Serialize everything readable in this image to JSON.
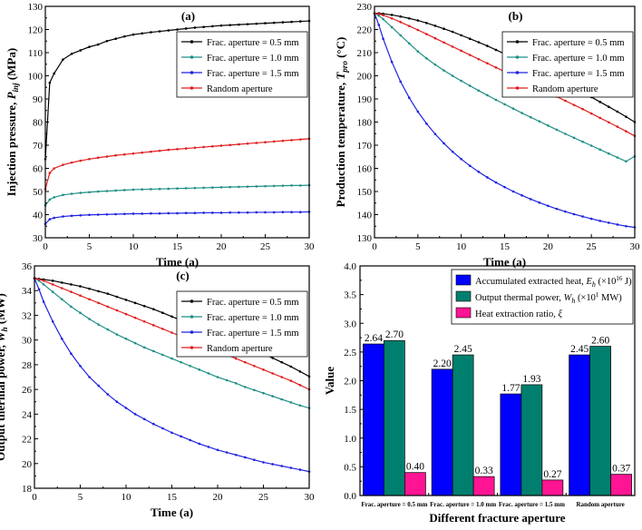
{
  "colors": {
    "s05": "#000000",
    "s10": "#1f8f86",
    "s15": "#1e22e0",
    "rand": "#e01e1e",
    "barHeat": "#0000ff",
    "barPower": "#007f6e",
    "barRatio": "#ff1493"
  },
  "chart_data": [
    {
      "id": "a",
      "type": "line",
      "panel_label": "(a)",
      "xlabel": "Time (a)",
      "ylabel": "Injection pressure, P_inj (MPa)",
      "ylabel_parts": {
        "pre": "Injection pressure, ",
        "sym": "P",
        "sub": "inj",
        "post": " (MPa)"
      },
      "xlim": [
        0,
        30
      ],
      "ylim": [
        30,
        130
      ],
      "xticks": [
        0,
        5,
        10,
        15,
        20,
        25,
        30
      ],
      "yticks": [
        30,
        40,
        50,
        60,
        70,
        80,
        90,
        100,
        110,
        120,
        130
      ],
      "legend": "top-right",
      "x": [
        0,
        0.5,
        1,
        2,
        3,
        4,
        5,
        6,
        7,
        8,
        9,
        10,
        11,
        12,
        13,
        14,
        15,
        16,
        17,
        18,
        19,
        20,
        21,
        22,
        23,
        24,
        25,
        26,
        27,
        28,
        29,
        30
      ],
      "series": [
        {
          "name": "Frac. aperture = 0.5 mm",
          "color_key": "s05",
          "values": [
            64,
            97,
            101,
            107,
            109.5,
            111,
            112.5,
            113.5,
            115,
            116,
            117,
            117.8,
            118.3,
            118.8,
            119.2,
            119.6,
            120,
            120.4,
            120.8,
            121.1,
            121.4,
            121.7,
            121.9,
            122.1,
            122.3,
            122.5,
            122.7,
            122.9,
            123.1,
            123.3,
            123.5,
            123.7
          ]
        },
        {
          "name": "Frac. aperture = 1.0 mm",
          "color_key": "s10",
          "values": [
            44,
            46.5,
            47.5,
            48.5,
            49,
            49.4,
            49.7,
            50,
            50.2,
            50.4,
            50.6,
            50.8,
            50.9,
            51,
            51.1,
            51.2,
            51.3,
            51.4,
            51.5,
            51.6,
            51.7,
            51.8,
            51.9,
            52,
            52.1,
            52.2,
            52.3,
            52.4,
            52.5,
            52.6,
            52.6,
            52.7
          ]
        },
        {
          "name": "Frac. aperture = 1.5 mm",
          "color_key": "s15",
          "values": [
            36,
            38,
            38.6,
            39.2,
            39.5,
            39.7,
            39.9,
            40,
            40.1,
            40.2,
            40.3,
            40.4,
            40.4,
            40.5,
            40.5,
            40.6,
            40.6,
            40.7,
            40.7,
            40.8,
            40.8,
            40.8,
            40.9,
            40.9,
            40.9,
            41,
            41,
            41,
            41.1,
            41.1,
            41.1,
            41.2
          ]
        },
        {
          "name": "Random aperture",
          "color_key": "rand",
          "values": [
            51,
            58,
            60,
            61.5,
            62.5,
            63.3,
            64,
            64.6,
            65.1,
            65.6,
            66,
            66.4,
            66.8,
            67.2,
            67.6,
            68,
            68.3,
            68.6,
            68.9,
            69.2,
            69.5,
            69.8,
            70.1,
            70.4,
            70.7,
            71,
            71.3,
            71.6,
            71.9,
            72.2,
            72.5,
            72.8
          ]
        }
      ]
    },
    {
      "id": "b",
      "type": "line",
      "panel_label": "(b)",
      "xlabel": "Time (a)",
      "ylabel": "Production temperature, T_pro (°C)",
      "ylabel_parts": {
        "pre": "Production temperature, ",
        "sym": "T",
        "sub": "pro",
        "post": " (°C)"
      },
      "xlim": [
        0,
        30
      ],
      "ylim": [
        130,
        230
      ],
      "xticks": [
        0,
        5,
        10,
        15,
        20,
        25,
        30
      ],
      "yticks": [
        130,
        140,
        150,
        160,
        170,
        180,
        190,
        200,
        210,
        220,
        230
      ],
      "legend": "top-right",
      "x": [
        0,
        0.5,
        1,
        2,
        3,
        4,
        5,
        6,
        7,
        8,
        9,
        10,
        11,
        12,
        13,
        14,
        15,
        16,
        17,
        18,
        19,
        20,
        21,
        22,
        23,
        24,
        25,
        26,
        27,
        28,
        29,
        30
      ],
      "series": [
        {
          "name": "Frac. aperture = 0.5 mm",
          "color_key": "s05",
          "values": [
            227,
            227,
            226.8,
            226.3,
            225.6,
            224.8,
            223.9,
            222.8,
            221.6,
            220.3,
            219,
            217.5,
            216,
            214.5,
            212.9,
            211.2,
            209.5,
            207.8,
            206,
            204.2,
            202.4,
            200.5,
            198.6,
            196.7,
            194.8,
            192.8,
            190.8,
            188.7,
            186.6,
            184.5,
            182.3,
            180
          ]
        },
        {
          "name": "Frac. aperture = 1.0 mm",
          "color_key": "s10",
          "values": [
            227,
            226,
            224.5,
            221,
            217.5,
            214,
            210.5,
            207.5,
            204.8,
            202.3,
            200,
            197.8,
            195.7,
            193.6,
            191.6,
            189.6,
            187.7,
            185.8,
            183.9,
            182.1,
            180.3,
            178.5,
            176.7,
            174.9,
            173.2,
            171.5,
            169.8,
            168.1,
            166.4,
            164.7,
            163,
            165.2
          ]
        },
        {
          "name": "Frac. aperture = 1.5 mm",
          "color_key": "s15",
          "values": [
            227,
            222,
            216,
            206,
            197.5,
            190.5,
            184.5,
            179.3,
            174.8,
            170.8,
            167.2,
            164,
            161.1,
            158.5,
            156.1,
            153.9,
            151.9,
            150,
            148.3,
            146.7,
            145.2,
            143.8,
            142.5,
            141.3,
            140.2,
            139.2,
            138.2,
            137.3,
            136.5,
            135.7,
            135,
            134.5
          ]
        },
        {
          "name": "Random aperture",
          "color_key": "rand",
          "values": [
            227,
            226.7,
            226.2,
            224.8,
            223.2,
            221.5,
            219.8,
            218,
            216.2,
            214.4,
            212.6,
            210.8,
            209,
            207.2,
            205.4,
            203.6,
            201.8,
            200,
            198.2,
            196.4,
            194.6,
            192.8,
            191,
            189.2,
            187.4,
            185.6,
            183.7,
            181.8,
            179.9,
            178,
            176,
            174
          ]
        }
      ]
    },
    {
      "id": "c",
      "type": "line",
      "panel_label": "(c)",
      "xlabel": "Time (a)",
      "ylabel": "Output thermal power, W_h (MW)",
      "ylabel_parts": {
        "pre": "Output thermal power, ",
        "sym": "W",
        "sub": "h",
        "post": " (MW)"
      },
      "xlim": [
        0,
        30
      ],
      "ylim": [
        18,
        36
      ],
      "xticks": [
        0,
        5,
        10,
        15,
        20,
        25,
        30
      ],
      "yticks": [
        18,
        20,
        22,
        24,
        26,
        28,
        30,
        32,
        34,
        36
      ],
      "legend": "top-right",
      "x": [
        0,
        0.5,
        1,
        2,
        3,
        4,
        5,
        6,
        7,
        8,
        9,
        10,
        11,
        12,
        13,
        14,
        15,
        16,
        17,
        18,
        19,
        20,
        21,
        22,
        23,
        24,
        25,
        26,
        27,
        28,
        29,
        30
      ],
      "series": [
        {
          "name": "Frac. aperture = 0.5 mm",
          "color_key": "s05",
          "values": [
            35,
            34.95,
            34.9,
            34.8,
            34.65,
            34.5,
            34.35,
            34.15,
            33.95,
            33.75,
            33.5,
            33.25,
            33,
            32.75,
            32.5,
            32.2,
            31.9,
            31.6,
            31.3,
            31,
            30.7,
            30.4,
            30.1,
            29.8,
            29.5,
            29.2,
            28.9,
            28.55,
            28.2,
            27.85,
            27.45,
            27.05
          ]
        },
        {
          "name": "Frac. aperture = 1.0 mm",
          "color_key": "s10",
          "values": [
            35,
            34.8,
            34.5,
            33.9,
            33.3,
            32.7,
            32.2,
            31.7,
            31.25,
            30.85,
            30.45,
            30.1,
            29.75,
            29.4,
            29.1,
            28.8,
            28.5,
            28.2,
            27.9,
            27.6,
            27.3,
            27,
            26.75,
            26.5,
            26.2,
            25.95,
            25.7,
            25.45,
            25.2,
            24.95,
            24.7,
            24.5
          ]
        },
        {
          "name": "Frac. aperture = 1.5 mm",
          "color_key": "s15",
          "values": [
            35,
            34.1,
            33.1,
            31.5,
            30.1,
            28.9,
            27.9,
            27,
            26.3,
            25.6,
            25,
            24.5,
            24,
            23.6,
            23.2,
            22.85,
            22.5,
            22.2,
            21.9,
            21.6,
            21.35,
            21.1,
            20.9,
            20.7,
            20.5,
            20.3,
            20.1,
            19.95,
            19.8,
            19.65,
            19.5,
            19.35
          ]
        },
        {
          "name": "Random aperture",
          "color_key": "rand",
          "values": [
            35,
            34.9,
            34.8,
            34.5,
            34.2,
            33.9,
            33.6,
            33.3,
            33,
            32.7,
            32.4,
            32.1,
            31.8,
            31.5,
            31.2,
            30.9,
            30.6,
            30.3,
            30,
            29.7,
            29.4,
            29.1,
            28.8,
            28.5,
            28.2,
            27.9,
            27.6,
            27.3,
            27,
            26.7,
            26.35,
            26
          ]
        }
      ]
    },
    {
      "id": "d",
      "type": "bar",
      "panel_label": "(d)",
      "xlabel": "Different fracture aperture",
      "ylabel": "Value",
      "ylim": [
        0,
        4
      ],
      "yticks": [
        0,
        0.5,
        1,
        1.5,
        2,
        2.5,
        3,
        3.5,
        4
      ],
      "ytick_labels": [
        "0.0",
        "0.5",
        "1.0",
        "1.5",
        "2.0",
        "2.5",
        "3.0",
        "3.5",
        "4.0"
      ],
      "legend": "top-right",
      "categories": [
        "Frac. aperture = 0.5 mm",
        "Frac. aperture = 1.0 mm",
        "Frac. aperture = 1.5 mm",
        "Random aperture"
      ],
      "series": [
        {
          "name": "Accumulated extracted heat, E_h (×10^16 J)",
          "color_key": "barHeat",
          "legend_parts": {
            "pre": "Accumulated extracted heat, ",
            "sym": "E",
            "sub": "h",
            "mid": " (×10",
            "sup": "16",
            "post": " J)"
          },
          "values": [
            2.64,
            2.2,
            1.77,
            2.45
          ],
          "labels": [
            "2.64",
            "2.20",
            "1.77",
            "2.45"
          ]
        },
        {
          "name": "Output thermal power, W_h (×10^1 MW)",
          "color_key": "barPower",
          "legend_parts": {
            "pre": "Output thermal power, ",
            "sym": "W",
            "sub": "h",
            "mid": " (×10",
            "sup": "1",
            "post": " MW)"
          },
          "values": [
            2.7,
            2.45,
            1.93,
            2.6
          ],
          "labels": [
            "2.70",
            "2.45",
            "1.93",
            "2.60"
          ]
        },
        {
          "name": "Heat extraction ratio, ξ",
          "color_key": "barRatio",
          "legend_parts": {
            "pre": "Heat extraction ratio, ",
            "sym": "ξ",
            "sub": "",
            "mid": "",
            "sup": "",
            "post": ""
          },
          "values": [
            0.4,
            0.33,
            0.27,
            0.37
          ],
          "labels": [
            "0.40",
            "0.33",
            "0.27",
            "0.37"
          ]
        }
      ]
    }
  ]
}
